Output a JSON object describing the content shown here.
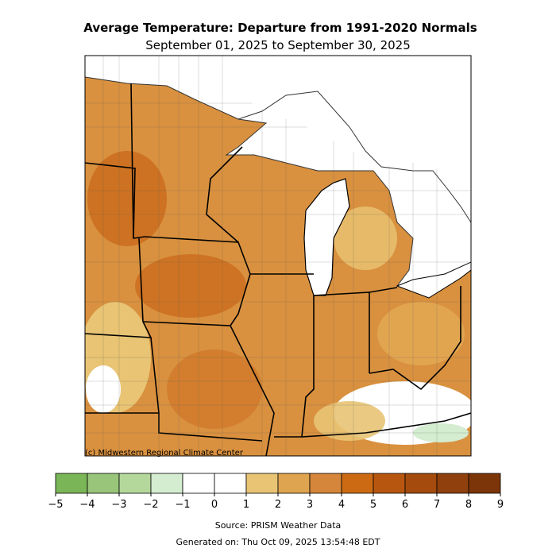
{
  "title": "Average Temperature: Departure from 1991-2020 Normals",
  "subtitle": "September 01, 2025 to September 30, 2025",
  "credit": "(c) Midwestern Regional Climate Center",
  "source": "Source: PRISM Weather Data",
  "generated": "Generated on: Thu Oct 09, 2025 13:54:48 EDT",
  "colorbar": {
    "ticks": [
      {
        "value": -5,
        "label": "−5"
      },
      {
        "value": -4,
        "label": "−4"
      },
      {
        "value": -3,
        "label": "−3"
      },
      {
        "value": -2,
        "label": "−2"
      },
      {
        "value": -1,
        "label": "−1"
      },
      0,
      1,
      2,
      3,
      4,
      5,
      6,
      7,
      8,
      9
    ],
    "colors": [
      "#7ab657",
      "#98c57a",
      "#b4d89c",
      "#d4ecd0",
      "#ffffff",
      "#ffffff",
      "#e8c474",
      "#dea44f",
      "#d5863a",
      "#cc6a14",
      "#b7570f",
      "#a44b0d",
      "#8f400c",
      "#7c3509"
    ]
  }
}
